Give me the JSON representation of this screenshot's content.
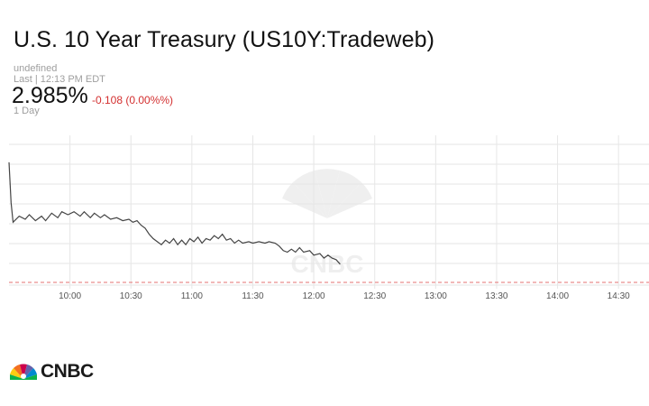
{
  "header": {
    "title": "U.S. 10 Year Treasury (US10Y:Tradeweb)",
    "undefined_label": "undefined",
    "last_label": "Last | 12:13 PM EDT",
    "price": "2.985%",
    "change": "-0.108 (0.00%%)",
    "range_label": "1 Day"
  },
  "brand": {
    "logo_text": "CNBC",
    "watermark_text": "CNBC"
  },
  "colors": {
    "line": "#444444",
    "reference": "#e57373",
    "grid": "#e6e6e6",
    "change": "#d32f2f"
  },
  "chart_data": {
    "type": "line",
    "title": "",
    "xlabel": "",
    "ylabel": "",
    "x_ticks": [
      "10:00",
      "10:30",
      "11:00",
      "11:30",
      "12:00",
      "12:30",
      "13:00",
      "13:30",
      "14:00",
      "14:30"
    ],
    "x_range": [
      "09:30",
      "14:45"
    ],
    "grid": true,
    "reference_line": "previous close (dashed)",
    "series": [
      {
        "values": [
          [
            "09:30",
            0.82
          ],
          [
            "09:31",
            0.55
          ],
          [
            "09:32",
            0.42
          ],
          [
            "09:35",
            0.46
          ],
          [
            "09:38",
            0.44
          ],
          [
            "09:40",
            0.47
          ],
          [
            "09:43",
            0.43
          ],
          [
            "09:46",
            0.46
          ],
          [
            "09:48",
            0.43
          ],
          [
            "09:51",
            0.48
          ],
          [
            "09:54",
            0.45
          ],
          [
            "09:56",
            0.49
          ],
          [
            "09:59",
            0.47
          ],
          [
            "10:02",
            0.49
          ],
          [
            "10:05",
            0.46
          ],
          [
            "10:07",
            0.49
          ],
          [
            "10:10",
            0.45
          ],
          [
            "10:12",
            0.48
          ],
          [
            "10:15",
            0.45
          ],
          [
            "10:17",
            0.47
          ],
          [
            "10:20",
            0.44
          ],
          [
            "10:23",
            0.45
          ],
          [
            "10:26",
            0.43
          ],
          [
            "10:29",
            0.44
          ],
          [
            "10:31",
            0.42
          ],
          [
            "10:33",
            0.43
          ],
          [
            "10:35",
            0.4
          ],
          [
            "10:37",
            0.38
          ],
          [
            "10:39",
            0.34
          ],
          [
            "10:41",
            0.31
          ],
          [
            "10:43",
            0.29
          ],
          [
            "10:45",
            0.27
          ],
          [
            "10:47",
            0.3
          ],
          [
            "10:49",
            0.28
          ],
          [
            "10:51",
            0.31
          ],
          [
            "10:53",
            0.27
          ],
          [
            "10:55",
            0.3
          ],
          [
            "10:57",
            0.27
          ],
          [
            "10:59",
            0.31
          ],
          [
            "11:01",
            0.29
          ],
          [
            "11:03",
            0.32
          ],
          [
            "11:05",
            0.28
          ],
          [
            "11:07",
            0.31
          ],
          [
            "11:09",
            0.3
          ],
          [
            "11:11",
            0.33
          ],
          [
            "11:13",
            0.31
          ],
          [
            "11:15",
            0.34
          ],
          [
            "11:17",
            0.3
          ],
          [
            "11:19",
            0.31
          ],
          [
            "11:21",
            0.28
          ],
          [
            "11:23",
            0.3
          ],
          [
            "11:25",
            0.28
          ],
          [
            "11:28",
            0.29
          ],
          [
            "11:30",
            0.28
          ],
          [
            "11:33",
            0.29
          ],
          [
            "11:36",
            0.28
          ],
          [
            "11:38",
            0.29
          ],
          [
            "11:41",
            0.28
          ],
          [
            "11:43",
            0.26
          ],
          [
            "11:45",
            0.23
          ],
          [
            "11:47",
            0.22
          ],
          [
            "11:49",
            0.24
          ],
          [
            "11:51",
            0.22
          ],
          [
            "11:53",
            0.25
          ],
          [
            "11:55",
            0.22
          ],
          [
            "11:58",
            0.23
          ],
          [
            "12:00",
            0.2
          ],
          [
            "12:03",
            0.21
          ],
          [
            "12:05",
            0.18
          ],
          [
            "12:07",
            0.2
          ],
          [
            "12:09",
            0.18
          ],
          [
            "12:11",
            0.17
          ],
          [
            "12:13",
            0.14
          ]
        ]
      }
    ],
    "y_relative_range": [
      0.0,
      1.0
    ]
  }
}
